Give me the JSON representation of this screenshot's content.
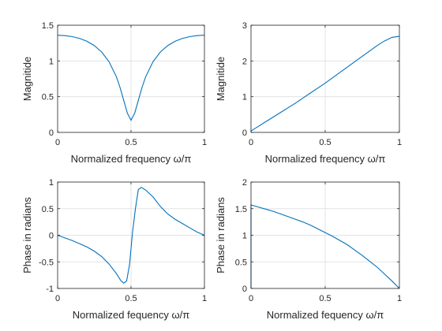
{
  "figure": {
    "background": "#ffffff",
    "line_color": "#0072bd"
  },
  "chart_data": [
    {
      "type": "line",
      "xlabel": "Normalized frequency ω/π",
      "ylabel": "Magnitide",
      "xlim": [
        0,
        1
      ],
      "ylim": [
        0,
        1.5
      ],
      "xticks": [
        0,
        0.5,
        1
      ],
      "xtick_labels": [
        "0",
        "0.5",
        "1"
      ],
      "yticks": [
        0,
        0.5,
        1,
        1.5
      ],
      "ytick_labels": [
        "0",
        "0.5",
        "1",
        "1.5"
      ],
      "grid": true,
      "series": [
        {
          "x": [
            0,
            0.05,
            0.1,
            0.15,
            0.2,
            0.25,
            0.3,
            0.35,
            0.4,
            0.425,
            0.45,
            0.475,
            0.5,
            0.525,
            0.55,
            0.575,
            0.6,
            0.65,
            0.7,
            0.75,
            0.8,
            0.85,
            0.9,
            0.95,
            1
          ],
          "y": [
            1.36,
            1.355,
            1.34,
            1.315,
            1.275,
            1.215,
            1.125,
            0.99,
            0.78,
            0.63,
            0.45,
            0.27,
            0.17,
            0.27,
            0.45,
            0.63,
            0.78,
            0.99,
            1.125,
            1.215,
            1.275,
            1.315,
            1.34,
            1.355,
            1.36
          ]
        }
      ]
    },
    {
      "type": "line",
      "xlabel": "Normalized frequency ω/π",
      "ylabel": "Magnitide",
      "xlim": [
        0,
        1
      ],
      "ylim": [
        0,
        3
      ],
      "xticks": [
        0,
        0.5,
        1
      ],
      "xtick_labels": [
        "0",
        "0.5",
        "1"
      ],
      "yticks": [
        0,
        1,
        2,
        3
      ],
      "ytick_labels": [
        "0",
        "1",
        "2",
        "3"
      ],
      "grid": true,
      "series": [
        {
          "x": [
            0,
            0.05,
            0.1,
            0.15,
            0.2,
            0.25,
            0.3,
            0.35,
            0.4,
            0.45,
            0.5,
            0.55,
            0.6,
            0.65,
            0.7,
            0.75,
            0.8,
            0.85,
            0.9,
            0.95,
            1
          ],
          "y": [
            0.04,
            0.17,
            0.3,
            0.43,
            0.56,
            0.69,
            0.82,
            0.96,
            1.1,
            1.24,
            1.38,
            1.53,
            1.68,
            1.83,
            1.98,
            2.13,
            2.28,
            2.43,
            2.56,
            2.66,
            2.69
          ]
        }
      ]
    },
    {
      "type": "line",
      "xlabel": "Normalized fequency ω/π",
      "ylabel": "Phase in radians",
      "xlim": [
        0,
        1
      ],
      "ylim": [
        -1,
        1
      ],
      "xticks": [
        0,
        0.5,
        1
      ],
      "xtick_labels": [
        "0",
        "0.5",
        "1"
      ],
      "yticks": [
        -1,
        -0.5,
        0,
        0.5,
        1
      ],
      "ytick_labels": [
        "-1",
        "-0.5",
        "0",
        "0.5",
        "1"
      ],
      "grid": true,
      "series": [
        {
          "x": [
            0,
            0.05,
            0.1,
            0.15,
            0.2,
            0.25,
            0.3,
            0.35,
            0.4,
            0.43,
            0.45,
            0.47,
            0.49,
            0.5,
            0.51,
            0.53,
            0.55,
            0.57,
            0.6,
            0.65,
            0.7,
            0.75,
            0.8,
            0.85,
            0.9,
            0.95,
            1
          ],
          "y": [
            0,
            -0.05,
            -0.1,
            -0.16,
            -0.22,
            -0.3,
            -0.4,
            -0.54,
            -0.72,
            -0.85,
            -0.9,
            -0.86,
            -0.55,
            -0.25,
            0.05,
            0.5,
            0.86,
            0.9,
            0.85,
            0.72,
            0.54,
            0.4,
            0.3,
            0.22,
            0.14,
            0.06,
            0
          ]
        }
      ]
    },
    {
      "type": "line",
      "xlabel": "Normalized fequency ω/π",
      "ylabel": "Phase in radians",
      "xlim": [
        0,
        1
      ],
      "ylim": [
        0,
        2
      ],
      "xticks": [
        0,
        0.5,
        1
      ],
      "xtick_labels": [
        "0",
        "0.5",
        "1"
      ],
      "yticks": [
        0,
        0.5,
        1,
        1.5,
        2
      ],
      "ytick_labels": [
        "0",
        "0.5",
        "1",
        "1.5",
        "2"
      ],
      "grid": true,
      "series": [
        {
          "x": [
            0,
            0,
            0.05,
            0.1,
            0.15,
            0.2,
            0.25,
            0.3,
            0.35,
            0.4,
            0.45,
            0.5,
            0.55,
            0.6,
            0.65,
            0.7,
            0.75,
            0.8,
            0.85,
            0.9,
            0.95,
            1
          ],
          "y": [
            0,
            1.57,
            1.53,
            1.49,
            1.45,
            1.4,
            1.35,
            1.3,
            1.25,
            1.19,
            1.12,
            1.05,
            0.98,
            0.9,
            0.82,
            0.72,
            0.62,
            0.51,
            0.4,
            0.27,
            0.14,
            0
          ]
        }
      ]
    }
  ]
}
